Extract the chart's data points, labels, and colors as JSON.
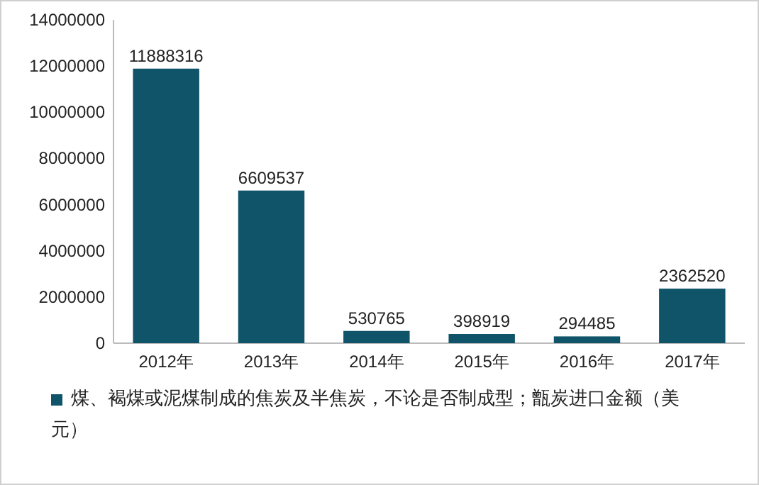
{
  "chart_data": {
    "type": "bar",
    "categories": [
      "2012年",
      "2013年",
      "2014年",
      "2015年",
      "2016年",
      "2017年"
    ],
    "series": [
      {
        "name": "煤、褐煤或泥煤制成的焦炭及半焦炭，不论是否制成型；甑炭进口金额（美元）",
        "color": "#0f5468",
        "values": [
          11888316,
          6609537,
          530765,
          398919,
          294485,
          2362520
        ]
      }
    ],
    "ylim": [
      0,
      14000000
    ],
    "yticks": [
      0,
      2000000,
      4000000,
      6000000,
      8000000,
      10000000,
      12000000,
      14000000
    ],
    "data_labels": true,
    "legend": "bottom"
  }
}
